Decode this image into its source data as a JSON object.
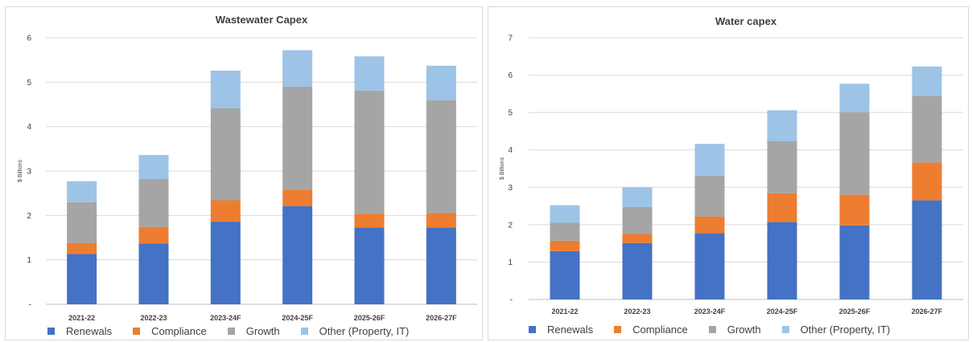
{
  "chart_data": [
    {
      "type": "bar",
      "stacked": true,
      "title": "Wastewater Capex",
      "ylabel": "$ Billions",
      "categories": [
        "2021-22",
        "2022-23",
        "2023-24F",
        "2024-25F",
        "2025-26F",
        "2026-27F"
      ],
      "ylim": [
        0,
        6
      ],
      "yticks": [
        "-",
        "1",
        "2",
        "3",
        "4",
        "5",
        "6"
      ],
      "grid": true,
      "legend_position": "bottom",
      "series": [
        {
          "name": "Renewals",
          "color": "#4472c4",
          "values": [
            1.13,
            1.37,
            1.86,
            2.21,
            1.73,
            1.73
          ]
        },
        {
          "name": "Compliance",
          "color": "#ed7d31",
          "values": [
            0.25,
            0.37,
            0.48,
            0.37,
            0.31,
            0.32
          ]
        },
        {
          "name": "Growth",
          "color": "#a5a5a5",
          "values": [
            0.92,
            1.08,
            2.07,
            2.32,
            2.77,
            2.54
          ]
        },
        {
          "name": "Other (Property, IT)",
          "color": "#9dc3e6",
          "values": [
            0.47,
            0.54,
            0.85,
            0.82,
            0.77,
            0.78
          ]
        }
      ]
    },
    {
      "type": "bar",
      "stacked": true,
      "title": "Water capex",
      "ylabel": "$ Billions",
      "categories": [
        "2021-22",
        "2022-23",
        "2023-24F",
        "2024-25F",
        "2025-26F",
        "2026-27F"
      ],
      "ylim": [
        0,
        7
      ],
      "yticks": [
        "-",
        "1",
        "2",
        "3",
        "4",
        "5",
        "6",
        "7"
      ],
      "grid": true,
      "legend_position": "bottom",
      "series": [
        {
          "name": "Renewals",
          "color": "#4472c4",
          "values": [
            1.29,
            1.51,
            1.77,
            2.07,
            1.98,
            2.65
          ]
        },
        {
          "name": "Compliance",
          "color": "#ed7d31",
          "values": [
            0.28,
            0.24,
            0.45,
            0.77,
            0.82,
            1.01
          ]
        },
        {
          "name": "Growth",
          "color": "#a5a5a5",
          "values": [
            0.48,
            0.72,
            1.09,
            1.39,
            2.21,
            1.79
          ]
        },
        {
          "name": "Other (Property, IT)",
          "color": "#9dc3e6",
          "values": [
            0.47,
            0.53,
            0.85,
            0.83,
            0.76,
            0.78
          ]
        }
      ]
    }
  ]
}
